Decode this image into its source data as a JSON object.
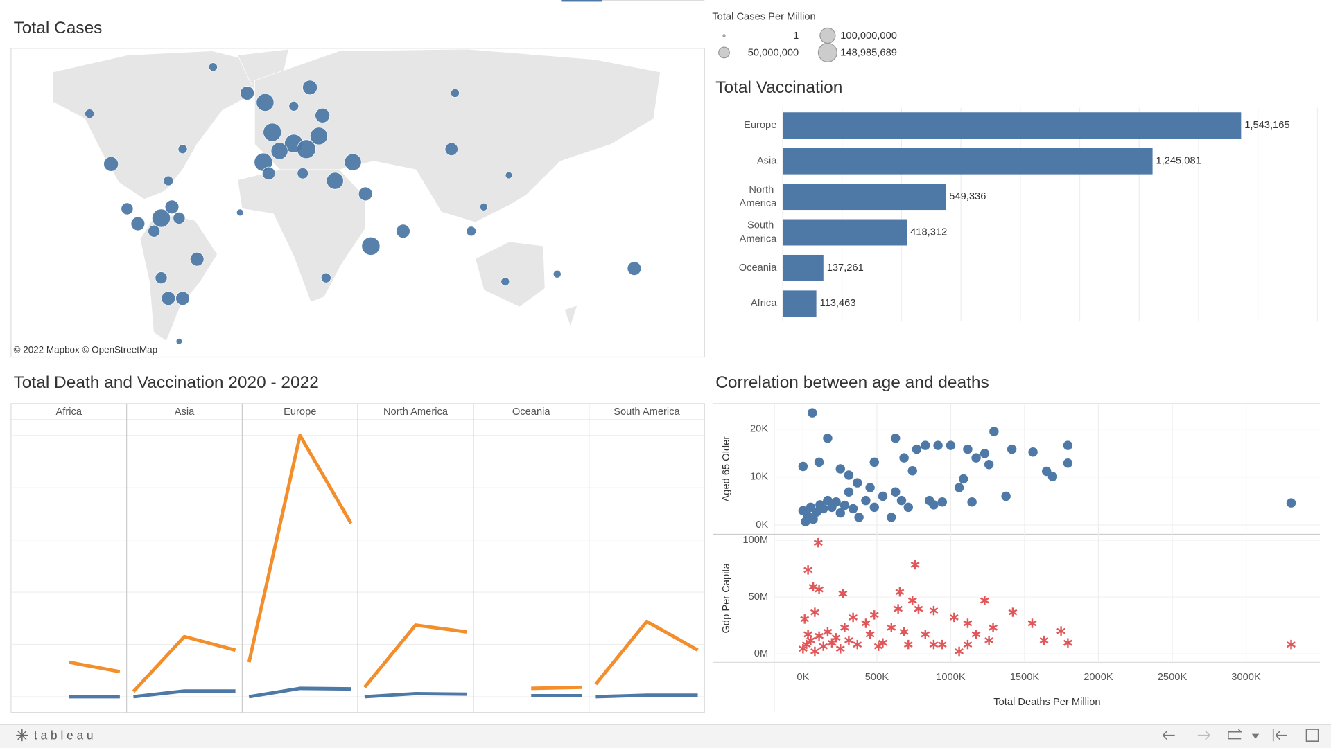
{
  "chart_data": [
    {
      "type": "map",
      "title": "Total Cases",
      "attribution": "© 2022 Mapbox © OpenStreetMap",
      "legend_title": "Total Cases Per Million",
      "legend_sizes": [
        1,
        {
          "value": 50000000,
          "label": "50,000,000"
        },
        {
          "value": 100000000,
          "label": "100,000,000"
        },
        {
          "value": 148985689,
          "label": "148,985,689"
        }
      ],
      "color": "#4e79a7",
      "lon": [
        -80,
        -61,
        -51,
        -26,
        -19,
        -35,
        -47,
        -35,
        -28,
        -43,
        -21,
        -52,
        -49,
        -30,
        -12,
        -2,
        -137,
        -149,
        -97,
        -105,
        -109,
        -122,
        -128,
        -103,
        -99,
        -113,
        -89,
        -109,
        -105,
        -97,
        8,
        26,
        53,
        55,
        83,
        155,
        112,
        5,
        -17,
        -65,
        -99,
        85,
        71,
        64
      ],
      "lat": [
        80,
        66,
        61,
        69,
        54,
        59,
        45,
        39,
        36,
        35,
        43,
        29,
        23,
        23,
        19,
        29,
        28,
        55,
        36,
        19,
        -1,
        -4,
        4,
        5,
        -1,
        -8,
        -23,
        -33,
        -44,
        -44,
        -16,
        -8,
        36,
        66,
        -35,
        -28,
        -31,
        12,
        -33,
        2,
        -67,
        22,
        5,
        -8
      ],
      "sizes": [
        30000000,
        80000000,
        130000000,
        90000000,
        90000000,
        40000000,
        140000000,
        145000000,
        148985689,
        120000000,
        130000000,
        140000000,
        70000000,
        50000000,
        120000000,
        120000000,
        90000000,
        35000000,
        35000000,
        40000000,
        140000000,
        80000000,
        60000000,
        80000000,
        60000000,
        60000000,
        80000000,
        60000000,
        80000000,
        80000000,
        140000000,
        80000000,
        70000000,
        30000000,
        30000000,
        80000000,
        25000000,
        80000000,
        40000000,
        20000000,
        15000000,
        20000000,
        25000000,
        40000000
      ]
    },
    {
      "type": "bar",
      "orientation": "horizontal",
      "title": "Total Vaccination",
      "color": "#4e79a7",
      "categories": [
        "Europe",
        "Asia",
        "North America",
        "South America",
        "Oceania",
        "Africa"
      ],
      "values": [
        1543165,
        1245081,
        549336,
        418312,
        137261,
        113463
      ],
      "value_labels": [
        "1,543,165",
        "1,245,081",
        "549,336",
        "418,312",
        "137,261",
        "113,463"
      ],
      "xlim": [
        0,
        1800000
      ],
      "xticks": [
        0,
        200000,
        400000,
        600000,
        800000,
        1000000,
        1200000,
        1400000,
        1600000,
        1800000
      ],
      "grid": true
    },
    {
      "type": "line",
      "title": "Total Death and Vaccination 2020 - 2022",
      "categories": [
        null,
        null,
        null
      ],
      "ylim": [
        -0.3,
        5.3
      ],
      "yticks": [
        0,
        1,
        2,
        3,
        4,
        5
      ],
      "grid": true,
      "facets": [
        {
          "name": "Africa",
          "series": [
            {
              "color": "#4e79a7",
              "values": [
                null,
                0,
                0
              ]
            },
            {
              "color": "#f28e2b",
              "values": [
                null,
                0.66,
                0.48
              ]
            }
          ]
        },
        {
          "name": "Asia",
          "series": [
            {
              "color": "#4e79a7",
              "values": [
                0,
                0.11,
                0.11
              ]
            },
            {
              "color": "#f28e2b",
              "values": [
                0.1,
                1.15,
                0.89
              ]
            }
          ]
        },
        {
          "name": "Europe",
          "series": [
            {
              "color": "#4e79a7",
              "values": [
                0,
                0.16,
                0.15
              ]
            },
            {
              "color": "#f28e2b",
              "values": [
                0.66,
                5.0,
                3.32
              ]
            }
          ]
        },
        {
          "name": "North America",
          "series": [
            {
              "color": "#4e79a7",
              "values": [
                0,
                0.06,
                0.05
              ]
            },
            {
              "color": "#f28e2b",
              "values": [
                0.18,
                1.37,
                1.24
              ]
            }
          ]
        },
        {
          "name": "Oceania",
          "series": [
            {
              "color": "#4e79a7",
              "values": [
                null,
                0.02,
                0.02
              ]
            },
            {
              "color": "#f28e2b",
              "values": [
                null,
                0.16,
                0.18
              ]
            }
          ]
        },
        {
          "name": "South America",
          "series": [
            {
              "color": "#4e79a7",
              "values": [
                0,
                0.03,
                0.03
              ]
            },
            {
              "color": "#f28e2b",
              "values": [
                0.24,
                1.44,
                0.89
              ]
            }
          ]
        }
      ]
    },
    {
      "type": "scatter",
      "title": "Correlation between age and deaths",
      "xlabel": "Total Deaths Per Million",
      "xlim": [
        -195400,
        3500000
      ],
      "xticks": [
        {
          "value": 0,
          "label": "0K"
        },
        {
          "value": 500000,
          "label": "500K"
        },
        {
          "value": 1000000,
          "label": "1000K"
        },
        {
          "value": 1500000,
          "label": "1500K"
        },
        {
          "value": 2000000,
          "label": "2000K"
        },
        {
          "value": 2500000,
          "label": "2500K"
        },
        {
          "value": 3000000,
          "label": "3000K"
        }
      ],
      "grid": true,
      "panes": [
        {
          "ylabel": "Aged 65 Older",
          "color": "#4e79a7",
          "marker": "circle",
          "ylim": [
            -1770,
            25130
          ],
          "yticks": [
            {
              "value": 0,
              "label": "0K"
            },
            {
              "value": 10000,
              "label": "10K"
            },
            {
              "value": 20000,
              "label": "20K"
            }
          ],
          "x": [
            63000,
            0,
            17000,
            34000,
            52000,
            69000,
            92000,
            115000,
            138000,
            167000,
            195000,
            224000,
            253000,
            282000,
            310000,
            339000,
            379000,
            425000,
            454000,
            483000,
            540000,
            598000,
            626000,
            667000,
            713000,
            741000,
            770000,
            828000,
            856000,
            914000,
            943000,
            1000000,
            1057000,
            1115000,
            1144000,
            1230000,
            1259000,
            1293000,
            1374000,
            1414000,
            1557000,
            1649000,
            1690000,
            1793000,
            1793000,
            3305000,
            0,
            109000,
            167000,
            253000,
            310000,
            368000,
            626000,
            684000,
            885000,
            1086000,
            1172000,
            483000
          ],
          "y": [
            23400,
            3000,
            700,
            1900,
            3700,
            1200,
            2700,
            4200,
            3400,
            5100,
            3700,
            4800,
            2500,
            4100,
            6900,
            3400,
            1600,
            5100,
            7800,
            3700,
            6000,
            1600,
            6900,
            5100,
            3700,
            11300,
            15800,
            16600,
            5100,
            16600,
            4800,
            16600,
            7800,
            15800,
            4800,
            14900,
            12600,
            19500,
            6000,
            15800,
            15200,
            11200,
            10100,
            16600,
            12900,
            4600,
            12200,
            13100,
            18100,
            11700,
            10400,
            8800,
            18100,
            14000,
            4200,
            9600,
            14000,
            13100
          ]
        },
        {
          "ylabel": "Gdp Per Capita",
          "color": "#e15759",
          "marker": "asterisk",
          "ylim": [
            -6700000,
            104500000
          ],
          "yticks": [
            {
              "value": 0,
              "label": "0M"
            },
            {
              "value": 50000000,
              "label": "50M"
            },
            {
              "value": 100000000,
              "label": "100M"
            }
          ],
          "x": [
            103000,
            34000,
            69000,
            109000,
            270000,
            759000,
            655000,
            741000,
            0,
            23000,
            52000,
            80000,
            109000,
            138000,
            167000,
            195000,
            224000,
            253000,
            282000,
            310000,
            339000,
            368000,
            425000,
            454000,
            483000,
            540000,
            598000,
            644000,
            684000,
            713000,
            782000,
            828000,
            885000,
            943000,
            1023000,
            1057000,
            1115000,
            1172000,
            1230000,
            1259000,
            1287000,
            1420000,
            1552000,
            1632000,
            1747000,
            1793000,
            3305000,
            11000,
            34000,
            80000,
            511000,
            885000,
            1115000
          ],
          "y": [
            97800000,
            73900000,
            59000000,
            56700000,
            53000000,
            78400000,
            54500000,
            47000000,
            4500000,
            8200000,
            11900000,
            2200000,
            15700000,
            6700000,
            19400000,
            9700000,
            14200000,
            4500000,
            23100000,
            11900000,
            32100000,
            8200000,
            26900000,
            17200000,
            34300000,
            9700000,
            23100000,
            39600000,
            19400000,
            8200000,
            39600000,
            17200000,
            38100000,
            8200000,
            32100000,
            2200000,
            26900000,
            17200000,
            47000000,
            11900000,
            23100000,
            36600000,
            26900000,
            11900000,
            20100000,
            9700000,
            8200000,
            30600000,
            17200000,
            36600000,
            6700000,
            8200000,
            8200000
          ]
        }
      ]
    }
  ],
  "footer": {
    "logo": "tableau"
  }
}
